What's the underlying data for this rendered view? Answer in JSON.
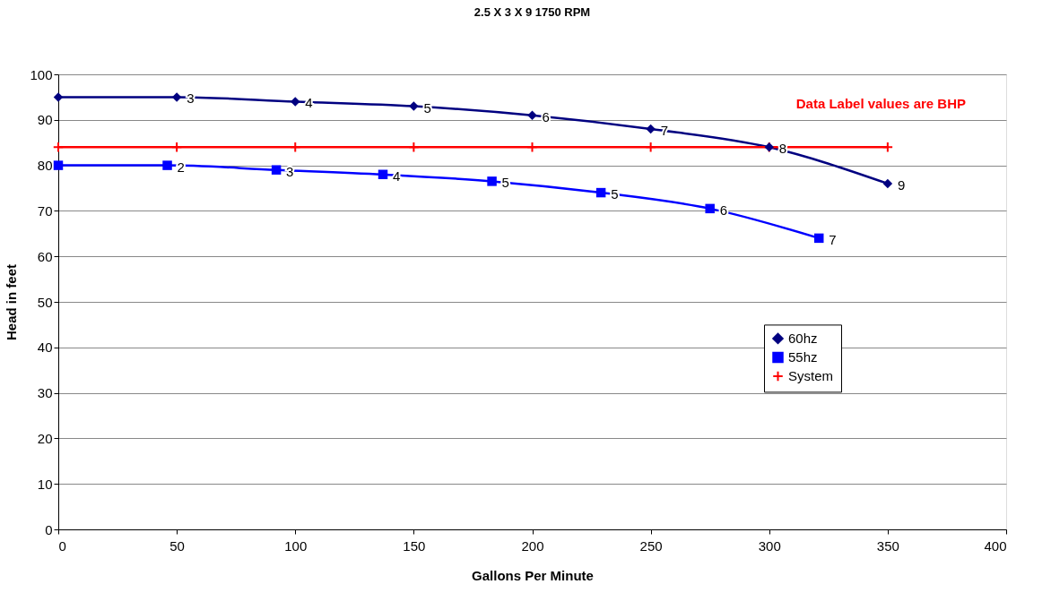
{
  "chart_data": {
    "type": "line",
    "title": "2.5 X 3 X 9   1750 RPM",
    "xlabel": "Gallons Per Minute",
    "ylabel": "Head in feet",
    "xlim": [
      0,
      400
    ],
    "xticks": [
      0,
      50,
      100,
      150,
      200,
      250,
      300,
      350,
      400
    ],
    "ylim": [
      0,
      100
    ],
    "yticks": [
      0,
      10,
      20,
      30,
      40,
      50,
      60,
      70,
      80,
      90,
      100
    ],
    "grid": "y",
    "legend": "right",
    "annotations": [
      "Data Label values are BHP",
      {
        "text": "3",
        "x": 50,
        "y": 95
      },
      {
        "text": "4",
        "x": 100,
        "y": 94
      },
      {
        "text": "5",
        "x": 150,
        "y": 93
      },
      {
        "text": "6",
        "x": 200,
        "y": 91
      },
      {
        "text": "7",
        "x": 250,
        "y": 88
      },
      {
        "text": "8",
        "x": 300,
        "y": 84
      },
      {
        "text": "9",
        "x": 350,
        "y": 76
      },
      {
        "text": "2",
        "x": 46,
        "y": 80
      },
      {
        "text": "3",
        "x": 92,
        "y": 79
      },
      {
        "text": "4",
        "x": 137,
        "y": 78
      },
      {
        "text": "5",
        "x": 183,
        "y": 76.5
      },
      {
        "text": "5",
        "x": 229,
        "y": 74
      },
      {
        "text": "6",
        "x": 275,
        "y": 70.5
      },
      {
        "text": "7",
        "x": 321,
        "y": 64
      }
    ],
    "series": [
      {
        "name": "60hz",
        "color": "#000080",
        "marker": "diamond",
        "x": [
          0,
          50,
          100,
          150,
          200,
          250,
          300,
          350
        ],
        "values": [
          95,
          95,
          94,
          93,
          91,
          88,
          84,
          76
        ]
      },
      {
        "name": "55hz",
        "color": "#0000ff",
        "marker": "square",
        "x": [
          0,
          46,
          92,
          137,
          183,
          229,
          275,
          321
        ],
        "values": [
          80,
          80,
          79,
          78,
          76.5,
          74,
          70.5,
          64
        ]
      },
      {
        "name": "System",
        "color": "#ff0000",
        "marker": "cross",
        "x": [
          0,
          50,
          100,
          150,
          200,
          250,
          300,
          350
        ],
        "values": [
          84,
          84,
          84,
          84,
          84,
          84,
          84,
          84
        ]
      }
    ]
  }
}
